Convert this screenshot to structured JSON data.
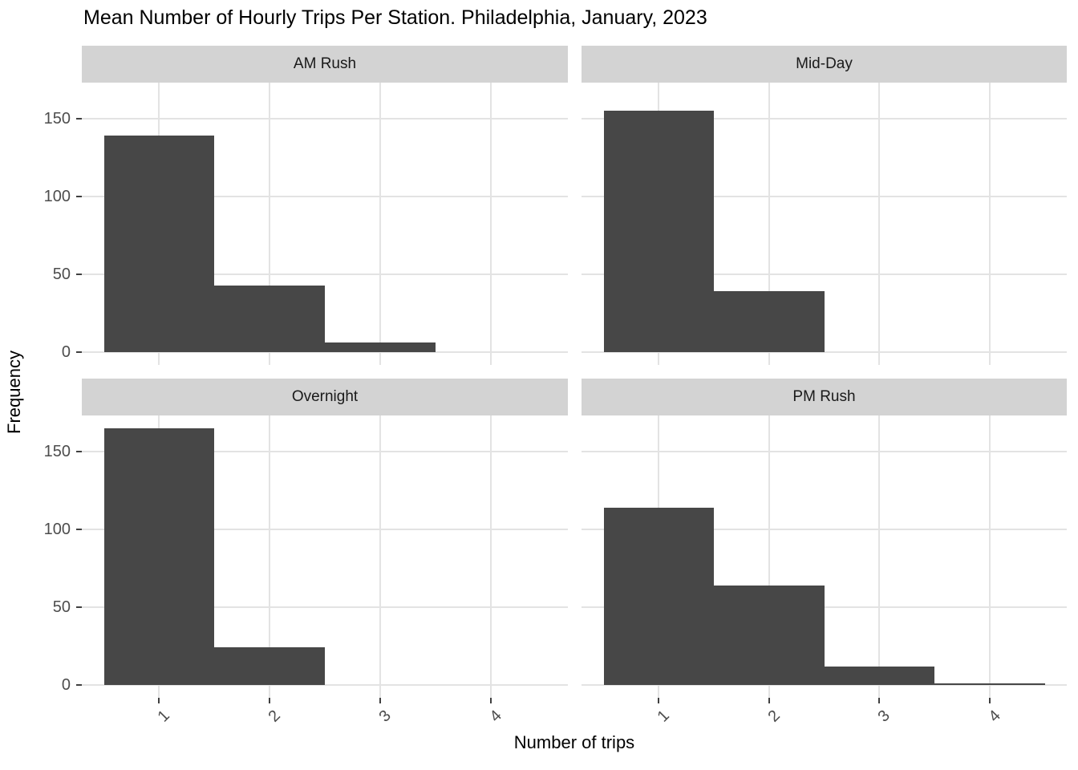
{
  "chart_data": {
    "type": "bar",
    "subtype": "faceted-histogram",
    "title": "Mean Number of Hourly Trips Per Station. Philadelphia, January, 2023",
    "xlabel": "Number of trips",
    "ylabel": "Frequency",
    "x_ticks": [
      "1",
      "2",
      "3",
      "4"
    ],
    "y_ticks": [
      "0",
      "50",
      "100",
      "150"
    ],
    "y_tick_values": [
      0,
      50,
      100,
      150
    ],
    "x_tick_values": [
      1,
      2,
      3,
      4
    ],
    "bin_centers": [
      1,
      2,
      3,
      4
    ],
    "bin_width": 1,
    "x_range": [
      0.3,
      4.7
    ],
    "y_range": [
      -8.25,
      173.25
    ],
    "grid": "major-only",
    "legend": "none",
    "facets": [
      {
        "label": "AM Rush",
        "values": [
          139,
          43,
          6,
          0
        ]
      },
      {
        "label": "Mid-Day",
        "values": [
          155,
          39,
          0,
          0
        ]
      },
      {
        "label": "Overnight",
        "values": [
          165,
          24,
          0,
          0
        ]
      },
      {
        "label": "PM Rush",
        "values": [
          114,
          64,
          12,
          1
        ]
      }
    ],
    "colors": {
      "bar": "#474747",
      "strip_bg": "#d3d3d3",
      "strip_text": "#1a1a1a",
      "gridline": "#e3e3e3",
      "axis_text": "#4d4d4d",
      "tick_mark": "#404040",
      "background": "#ffffff"
    }
  }
}
